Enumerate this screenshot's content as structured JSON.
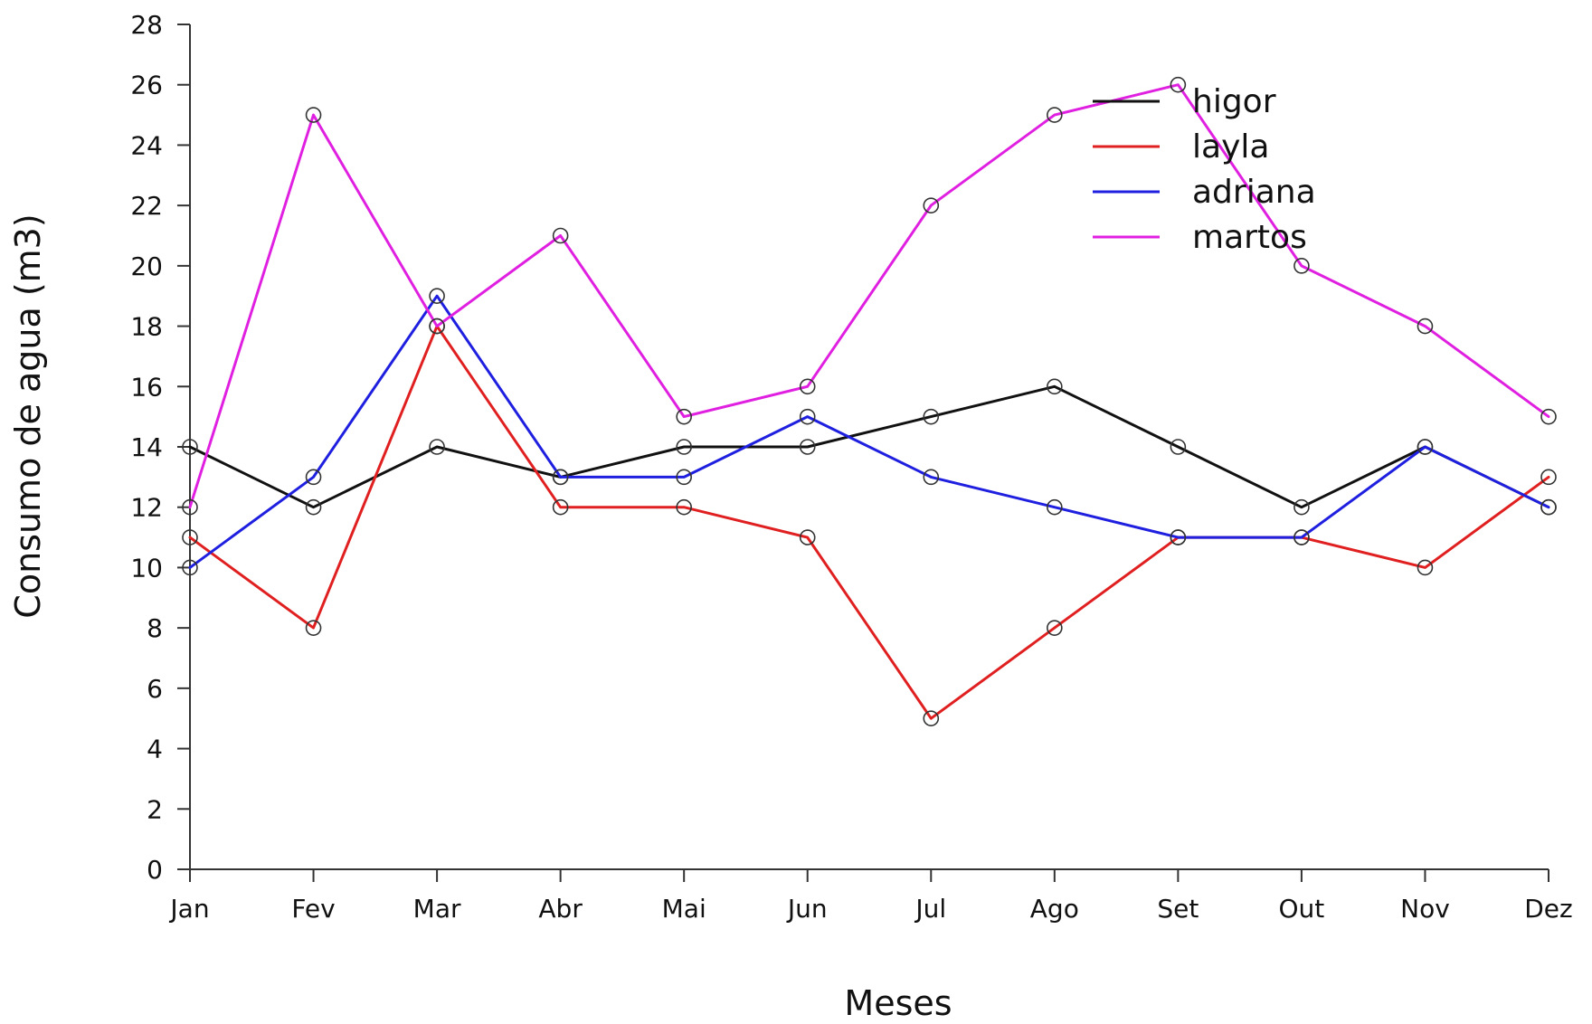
{
  "chart_data": {
    "type": "line",
    "categories": [
      "Jan",
      "Fev",
      "Mar",
      "Abr",
      "Mai",
      "Jun",
      "Jul",
      "Ago",
      "Set",
      "Out",
      "Nov",
      "Dez"
    ],
    "series": [
      {
        "name": "higor",
        "color": "#111111",
        "values": [
          14,
          12,
          14,
          13,
          14,
          14,
          15,
          16,
          14,
          12,
          14,
          12
        ]
      },
      {
        "name": "layla",
        "color": "#e02020",
        "values": [
          11,
          8,
          18,
          12,
          12,
          11,
          5,
          8,
          11,
          11,
          10,
          13
        ]
      },
      {
        "name": "adriana",
        "color": "#1f1fe0",
        "values": [
          10,
          13,
          19,
          13,
          13,
          15,
          13,
          12,
          11,
          11,
          14,
          12
        ]
      },
      {
        "name": "martos",
        "color": "#e020e0",
        "values": [
          12,
          25,
          18,
          21,
          15,
          16,
          22,
          25,
          26,
          20,
          18,
          15
        ]
      }
    ],
    "xlabel": "Meses",
    "ylabel": "Consumo de agua (m3)",
    "ylim": [
      0,
      28
    ],
    "yticks": [
      0,
      2,
      4,
      6,
      8,
      10,
      12,
      14,
      16,
      18,
      20,
      22,
      24,
      26,
      28
    ],
    "grid": false,
    "legend_position": "top-right",
    "markers": "open-circle"
  }
}
